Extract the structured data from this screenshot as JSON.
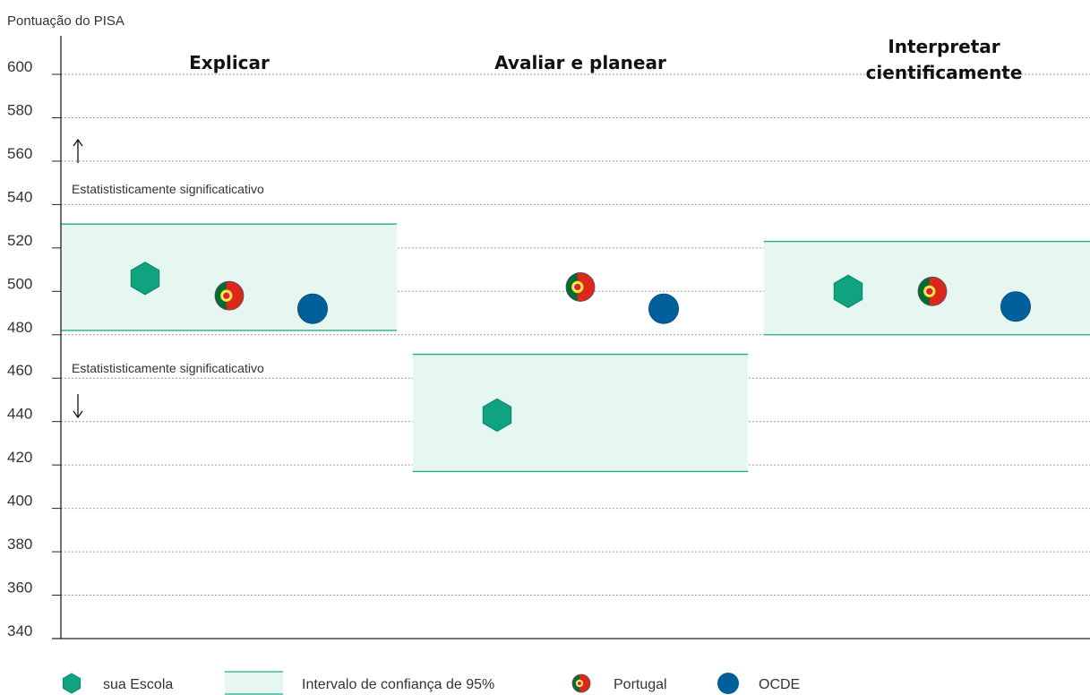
{
  "chart_data": {
    "type": "scatter",
    "ylabel": "Pontuação do PISA",
    "ylim": [
      340,
      600
    ],
    "yticks": [
      340,
      360,
      380,
      400,
      420,
      440,
      460,
      480,
      500,
      520,
      540,
      560,
      580,
      600
    ],
    "grid": true,
    "panels": [
      {
        "title": [
          "Explicar"
        ],
        "school": 506,
        "portugal": 498,
        "oecd": 492,
        "ci": [
          482,
          531
        ]
      },
      {
        "title": [
          "Avaliar e planear"
        ],
        "school": 443,
        "portugal": 502,
        "oecd": 492,
        "ci": [
          417,
          471
        ]
      },
      {
        "title": [
          "Interpretar",
          "cientificamente"
        ],
        "school": 500,
        "portugal": 500,
        "oecd": 493,
        "ci": [
          480,
          523
        ]
      }
    ],
    "annotations": {
      "up": "Estatististicamente significaticativo",
      "down": "Estatististicamente significaticativo"
    },
    "legend": {
      "position": "bottom",
      "items": [
        {
          "key": "school",
          "label": "sua Escola"
        },
        {
          "key": "ci",
          "label": "Intervalo de confiança de 95%"
        },
        {
          "key": "portugal",
          "label": "Portugal"
        },
        {
          "key": "oecd",
          "label": "OCDE"
        }
      ]
    },
    "colors": {
      "school": "#10a37f",
      "ci_fill": "#e6f6f0",
      "ci_line": "#1eae86",
      "oecd": "#00609c",
      "flag_green": "#046a38",
      "flag_red": "#da291c",
      "flag_yellow": "#ffe000",
      "grid": "#9a9a9a",
      "axis": "#222222"
    }
  }
}
